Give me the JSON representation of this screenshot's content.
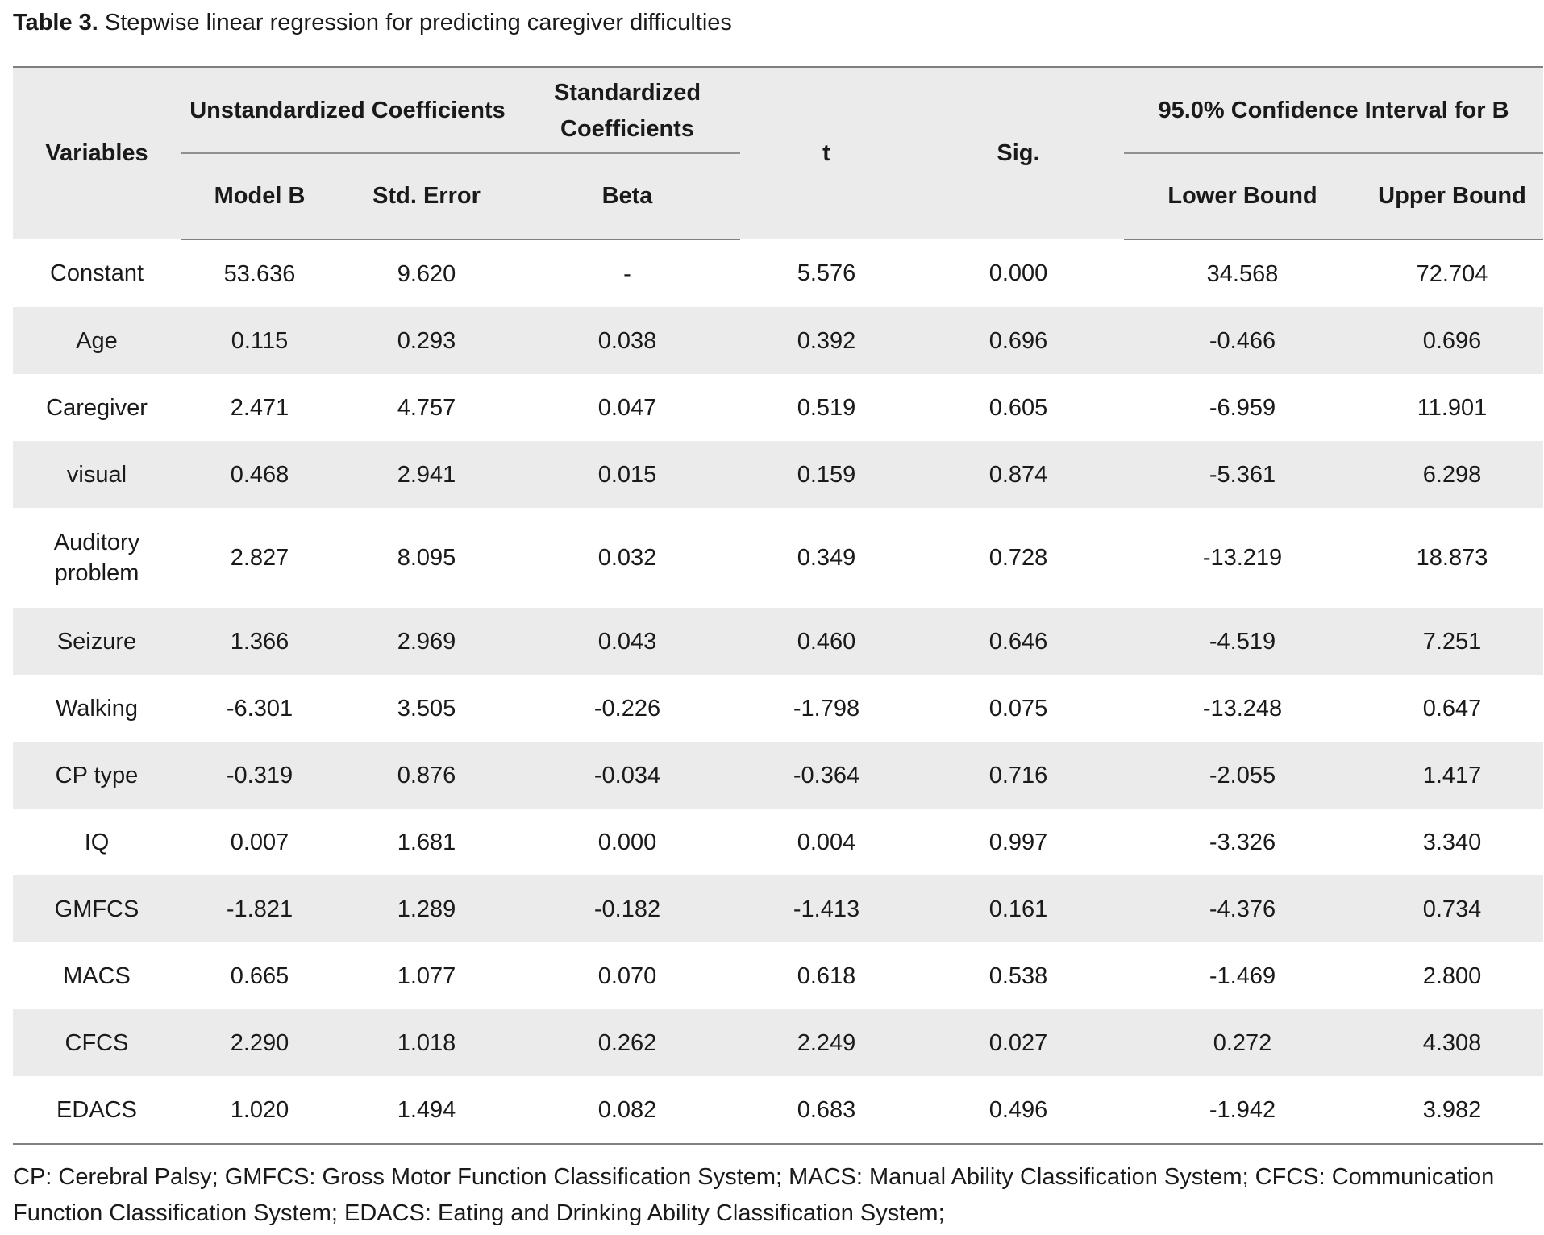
{
  "caption": {
    "label": "Table 3.",
    "text": "Stepwise linear regression for predicting caregiver difficulties"
  },
  "header": {
    "variables": "Variables",
    "unstandardized": "Unstandardized Coefficients",
    "standardized": "Standardized Coefficients",
    "t": "t",
    "sig": "Sig.",
    "ci": "95.0% Confidence Interval for B",
    "model_b": "Model B",
    "std_error": "Std. Error",
    "beta": "Beta",
    "lower_bound": "Lower Bound",
    "upper_bound": "Upper Bound"
  },
  "rows": [
    {
      "variable": "Constant",
      "b": "53.636",
      "se": "9.620",
      "beta": "-",
      "t": "5.576",
      "sig": "0.000",
      "lower": "34.568",
      "upper": "72.704"
    },
    {
      "variable": "Age",
      "b": "0.115",
      "se": "0.293",
      "beta": "0.038",
      "t": "0.392",
      "sig": "0.696",
      "lower": "-0.466",
      "upper": "0.696"
    },
    {
      "variable": "Caregiver",
      "b": "2.471",
      "se": "4.757",
      "beta": "0.047",
      "t": "0.519",
      "sig": "0.605",
      "lower": "-6.959",
      "upper": "11.901"
    },
    {
      "variable": "visual",
      "b": "0.468",
      "se": "2.941",
      "beta": "0.015",
      "t": "0.159",
      "sig": "0.874",
      "lower": "-5.361",
      "upper": "6.298"
    },
    {
      "variable": "Auditory problem",
      "b": "2.827",
      "se": "8.095",
      "beta": "0.032",
      "t": "0.349",
      "sig": "0.728",
      "lower": "-13.219",
      "upper": "18.873"
    },
    {
      "variable": "Seizure",
      "b": "1.366",
      "se": "2.969",
      "beta": "0.043",
      "t": "0.460",
      "sig": "0.646",
      "lower": "-4.519",
      "upper": "7.251"
    },
    {
      "variable": "Walking",
      "b": "-6.301",
      "se": "3.505",
      "beta": "-0.226",
      "t": "-1.798",
      "sig": "0.075",
      "lower": "-13.248",
      "upper": "0.647"
    },
    {
      "variable": "CP type",
      "b": "-0.319",
      "se": "0.876",
      "beta": "-0.034",
      "t": "-0.364",
      "sig": "0.716",
      "lower": "-2.055",
      "upper": "1.417"
    },
    {
      "variable": "IQ",
      "b": "0.007",
      "se": "1.681",
      "beta": "0.000",
      "t": "0.004",
      "sig": "0.997",
      "lower": "-3.326",
      "upper": "3.340"
    },
    {
      "variable": "GMFCS",
      "b": "-1.821",
      "se": "1.289",
      "beta": "-0.182",
      "t": "-1.413",
      "sig": "0.161",
      "lower": "-4.376",
      "upper": "0.734"
    },
    {
      "variable": "MACS",
      "b": "0.665",
      "se": "1.077",
      "beta": "0.070",
      "t": "0.618",
      "sig": "0.538",
      "lower": "-1.469",
      "upper": "2.800"
    },
    {
      "variable": "CFCS",
      "b": "2.290",
      "se": "1.018",
      "beta": "0.262",
      "t": "2.249",
      "sig": "0.027",
      "lower": "0.272",
      "upper": "4.308"
    },
    {
      "variable": "EDACS",
      "b": "1.020",
      "se": "1.494",
      "beta": "0.082",
      "t": "0.683",
      "sig": "0.496",
      "lower": "-1.942",
      "upper": "3.982"
    }
  ],
  "footnote": "CP: Cerebral Palsy; GMFCS: Gross Motor Function Classification System; MACS: Manual Ability Classification System; CFCS: Communication Function Classification System; EDACS: Eating and Drinking Ability Classification System;"
}
